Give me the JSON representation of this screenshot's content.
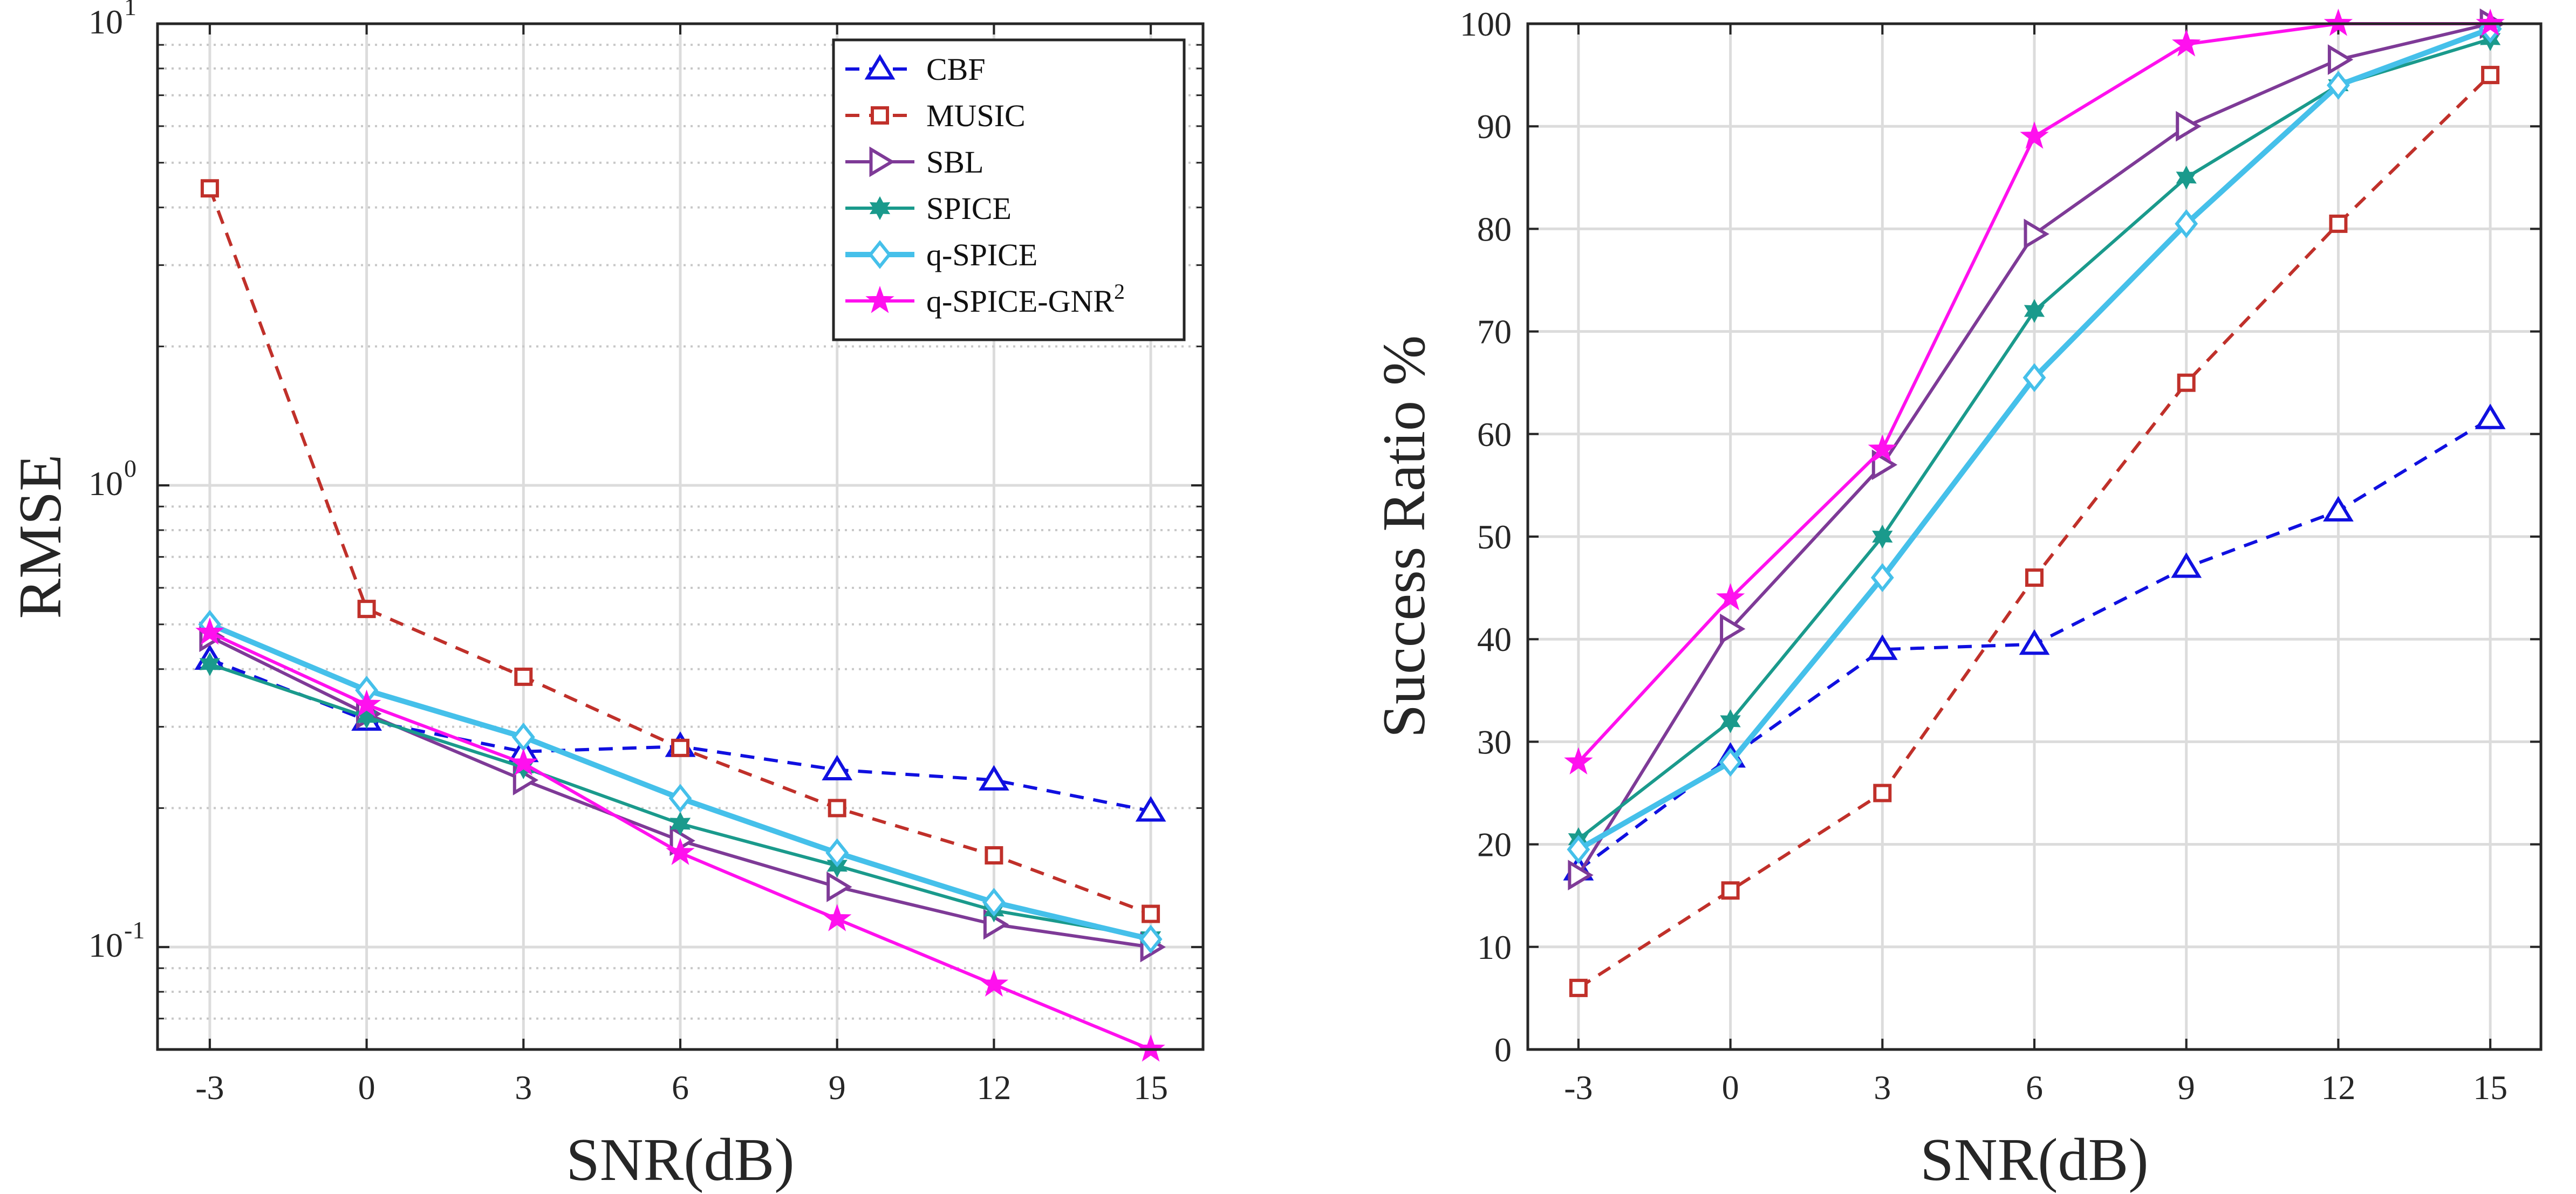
{
  "chart_data": [
    {
      "type": "line",
      "yscale": "log",
      "xlabel": "SNR(dB)",
      "ylabel": "RMSE",
      "x": [
        -3,
        0,
        3,
        6,
        9,
        12,
        15
      ],
      "x_tick_labels": [
        "-3",
        "0",
        "3",
        "6",
        "9",
        "12",
        "15"
      ],
      "y_tick_labels": [
        {
          "base": "10",
          "exp": "-1"
        },
        {
          "base": "10",
          "exp": "0"
        },
        {
          "base": "10",
          "exp": "1"
        }
      ],
      "xlim": [
        -4,
        16
      ],
      "ylim": [
        0.06,
        10
      ],
      "grid": true,
      "legend_position": "top-right",
      "series": [
        {
          "name": "CBF",
          "legend_label": "CBF",
          "color": "#1010e0",
          "dash": "dash",
          "marker": "triangle",
          "values": [
            0.42,
            0.31,
            0.265,
            0.272,
            0.242,
            0.23,
            0.197
          ]
        },
        {
          "name": "MUSIC",
          "legend_label": "MUSIC",
          "color": "#c0302a",
          "dash": "dash",
          "marker": "square",
          "values": [
            4.4,
            0.54,
            0.385,
            0.27,
            0.2,
            0.158,
            0.118
          ]
        },
        {
          "name": "SBL",
          "legend_label": "SBL",
          "color": "#7e3a97",
          "dash": "solid",
          "marker": "triangle-right",
          "values": [
            0.47,
            0.32,
            0.23,
            0.17,
            0.135,
            0.112,
            0.1
          ]
        },
        {
          "name": "SPICE",
          "legend_label": "SPICE",
          "color": "#1a9a8c",
          "dash": "solid",
          "marker": "hexagram",
          "values": [
            0.41,
            0.315,
            0.245,
            0.185,
            0.15,
            0.12,
            0.105
          ]
        },
        {
          "name": "q-SPICE",
          "legend_label": "q-SPICE",
          "color": "#45c0ea",
          "dash": "solid",
          "marker": "diamond",
          "values": [
            0.5,
            0.36,
            0.285,
            0.21,
            0.16,
            0.125,
            0.104
          ]
        },
        {
          "name": "q-SPICE-GNR2",
          "legend_label": "q-SPICE-GNR",
          "legend_sup": "2",
          "color": "#ff10ee",
          "dash": "solid",
          "marker": "star",
          "values": [
            0.48,
            0.335,
            0.25,
            0.16,
            0.115,
            0.083,
            0.06
          ]
        }
      ]
    },
    {
      "type": "line",
      "xlabel": "SNR(dB)",
      "ylabel": "Success Ratio %",
      "x": [
        -3,
        0,
        3,
        6,
        9,
        12,
        15
      ],
      "x_tick_labels": [
        "-3",
        "0",
        "3",
        "6",
        "9",
        "12",
        "15"
      ],
      "y_tick_labels": [
        "0",
        "10",
        "20",
        "30",
        "40",
        "50",
        "60",
        "70",
        "80",
        "90",
        "100"
      ],
      "y_ticks": [
        0,
        10,
        20,
        30,
        40,
        50,
        60,
        70,
        80,
        90,
        100
      ],
      "xlim": [
        -4,
        16
      ],
      "ylim": [
        0,
        100
      ],
      "grid": true,
      "series": [
        {
          "name": "CBF",
          "color": "#1010e0",
          "dash": "dash",
          "marker": "triangle",
          "values": [
            17.5,
            28.5,
            39,
            39.5,
            47,
            52.5,
            61.5
          ]
        },
        {
          "name": "MUSIC",
          "color": "#c0302a",
          "dash": "dash",
          "marker": "square",
          "values": [
            6,
            15.5,
            25,
            46,
            65,
            80.5,
            95
          ]
        },
        {
          "name": "SBL",
          "color": "#7e3a97",
          "dash": "solid",
          "marker": "triangle-right",
          "values": [
            17,
            41,
            57,
            79.5,
            90,
            96.5,
            100
          ]
        },
        {
          "name": "SPICE",
          "color": "#1a9a8c",
          "dash": "solid",
          "marker": "hexagram",
          "values": [
            20.5,
            32,
            50,
            72,
            85,
            94,
            98.5
          ]
        },
        {
          "name": "q-SPICE",
          "color": "#45c0ea",
          "dash": "solid",
          "marker": "diamond",
          "values": [
            19.5,
            28,
            46,
            65.5,
            80.5,
            94,
            99.5
          ]
        },
        {
          "name": "q-SPICE-GNR2",
          "color": "#ff10ee",
          "dash": "solid",
          "marker": "star",
          "values": [
            28,
            44,
            58.5,
            89,
            98,
            100,
            100
          ]
        }
      ]
    }
  ]
}
